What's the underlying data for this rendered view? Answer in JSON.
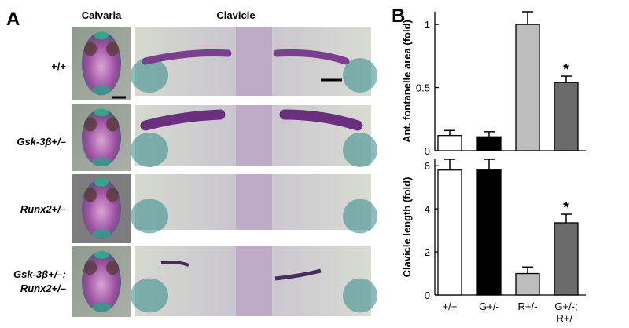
{
  "panel_a": {
    "label": "A",
    "column_titles": [
      "Calvaria",
      "Clavicle"
    ],
    "rows": [
      [
        "+/+"
      ],
      [
        "Gsk-3β+/–"
      ],
      [
        "Runx2+/–"
      ],
      [
        "Gsk-3β+/–;",
        "Runx2+/–"
      ]
    ]
  },
  "panel_b": {
    "label": "B"
  },
  "chart_data": [
    {
      "type": "bar",
      "ylabel": "Ant. fontanelle area (fold)",
      "values": [
        0.12,
        0.11,
        1.0,
        0.54
      ],
      "errors": [
        0.04,
        0.04,
        0.1,
        0.05
      ],
      "colors": [
        "#ffffff",
        "#000000",
        "#bdbdbd",
        "#6b6b6b"
      ],
      "annotations": [
        null,
        null,
        null,
        "*"
      ],
      "ylim": [
        0,
        1.1
      ],
      "yticks": [
        0,
        0.5,
        1
      ]
    },
    {
      "type": "bar",
      "ylabel": "Clavicle length (fold)",
      "categories": [
        "+/+",
        "G+/-",
        "R+/-",
        [
          "G+/-;",
          "R+/-"
        ]
      ],
      "values": [
        5.8,
        5.8,
        1.0,
        3.35
      ],
      "errors": [
        0.5,
        0.5,
        0.3,
        0.4
      ],
      "colors": [
        "#ffffff",
        "#000000",
        "#bdbdbd",
        "#6b6b6b"
      ],
      "annotations": [
        null,
        null,
        null,
        "*"
      ],
      "ylim": [
        0,
        6.3
      ],
      "yticks": [
        0,
        2,
        4,
        6
      ]
    }
  ]
}
